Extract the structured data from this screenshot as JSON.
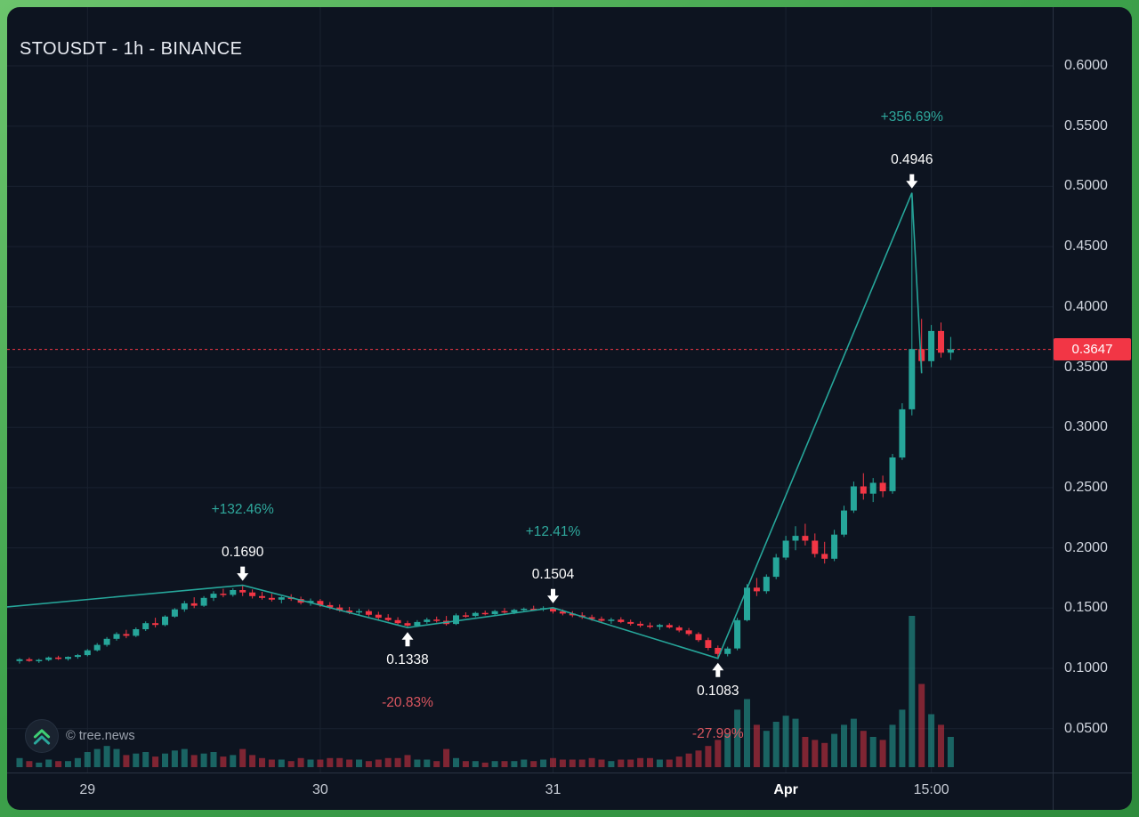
{
  "header": {
    "title": "STOUSDT - 1h - BINANCE"
  },
  "watermark": {
    "text": "© tree.news",
    "logo": "tree-news-double-chevron-up-icon"
  },
  "frame": {
    "border_gradient": [
      "#6cc46d",
      "#2e8c3c"
    ],
    "background": "#0d1420"
  },
  "chart_data": {
    "type": "candlestick",
    "title": "STOUSDT - 1h - BINANCE",
    "symbol": "STOUSDT",
    "interval": "1h",
    "exchange": "BINANCE",
    "ylim": [
      0.01,
      0.65
    ],
    "grid": "on",
    "last_price": 0.3647,
    "last_price_label": "0.3647",
    "colors": {
      "up": "#26a69a",
      "down": "#f23645",
      "vol_up": "rgba(38,166,154,0.55)",
      "vol_down": "rgba(242,54,69,0.5)",
      "grid": "#1a2230",
      "separator": "#2a3342",
      "pct_up": "#2fa99d",
      "pct_down": "#d9565f",
      "arrow": "#ffffff",
      "badge_bg": "#f23645"
    },
    "price_ticks": [
      {
        "label": "0.6000",
        "value": 0.6
      },
      {
        "label": "0.5500",
        "value": 0.55
      },
      {
        "label": "0.5000",
        "value": 0.5
      },
      {
        "label": "0.4500",
        "value": 0.45
      },
      {
        "label": "0.4000",
        "value": 0.4
      },
      {
        "label": "0.3500",
        "value": 0.35
      },
      {
        "label": "0.3000",
        "value": 0.3
      },
      {
        "label": "0.2500",
        "value": 0.25
      },
      {
        "label": "0.2000",
        "value": 0.2
      },
      {
        "label": "0.1500",
        "value": 0.15
      },
      {
        "label": "0.1000",
        "value": 0.1
      },
      {
        "label": "0.0500",
        "value": 0.05
      }
    ],
    "time_ticks": [
      {
        "label": "29",
        "index": 7,
        "bold": false
      },
      {
        "label": "30",
        "index": 31,
        "bold": false
      },
      {
        "label": "31",
        "index": 55,
        "bold": false
      },
      {
        "label": "Apr",
        "index": 79,
        "bold": true
      },
      {
        "label": "15:00",
        "index": 94,
        "bold": false
      }
    ],
    "zigzag": {
      "color": "#26a69a",
      "points": [
        {
          "i": -2,
          "price": 0.1505
        },
        {
          "i": 23,
          "price": 0.169
        },
        {
          "i": 40,
          "price": 0.1338
        },
        {
          "i": 55,
          "price": 0.1504
        },
        {
          "i": 72,
          "price": 0.1083
        },
        {
          "i": 92,
          "price": 0.4946
        },
        {
          "i": 93,
          "price": 0.345
        }
      ]
    },
    "swings": [
      {
        "i": 23,
        "price": 0.169,
        "side": "above",
        "trend": "up",
        "price_label": "0.1690",
        "pct_label": "+132.46%"
      },
      {
        "i": 40,
        "price": 0.1338,
        "side": "below",
        "trend": "down",
        "price_label": "0.1338",
        "pct_label": "-20.83%"
      },
      {
        "i": 55,
        "price": 0.1504,
        "side": "above",
        "trend": "up",
        "price_label": "0.1504",
        "pct_label": "+12.41%"
      },
      {
        "i": 72,
        "price": 0.1083,
        "side": "below",
        "trend": "down",
        "price_label": "0.1083",
        "pct_label": "-27.99%"
      },
      {
        "i": 92,
        "price": 0.4946,
        "side": "above",
        "trend": "up",
        "price_label": "0.4946",
        "pct_label": "+356.69%"
      }
    ],
    "candles_format": [
      "open",
      "high",
      "low",
      "close",
      "volume"
    ],
    "candles": [
      [
        0.106,
        0.1085,
        0.104,
        0.1075,
        6
      ],
      [
        0.1075,
        0.109,
        0.1055,
        0.1062,
        4
      ],
      [
        0.1062,
        0.108,
        0.1045,
        0.107,
        3
      ],
      [
        0.107,
        0.1098,
        0.106,
        0.109,
        5
      ],
      [
        0.109,
        0.1105,
        0.107,
        0.1078,
        4
      ],
      [
        0.1078,
        0.11,
        0.1065,
        0.1095,
        4
      ],
      [
        0.1095,
        0.112,
        0.108,
        0.111,
        6
      ],
      [
        0.111,
        0.116,
        0.11,
        0.115,
        10
      ],
      [
        0.115,
        0.121,
        0.114,
        0.1195,
        12
      ],
      [
        0.1195,
        0.126,
        0.118,
        0.1245,
        14
      ],
      [
        0.1245,
        0.13,
        0.123,
        0.1285,
        12
      ],
      [
        0.1285,
        0.132,
        0.125,
        0.127,
        8
      ],
      [
        0.127,
        0.134,
        0.126,
        0.1325,
        9
      ],
      [
        0.1325,
        0.139,
        0.131,
        0.1375,
        10
      ],
      [
        0.1375,
        0.142,
        0.134,
        0.136,
        7
      ],
      [
        0.136,
        0.144,
        0.135,
        0.143,
        9
      ],
      [
        0.143,
        0.15,
        0.142,
        0.149,
        11
      ],
      [
        0.149,
        0.156,
        0.147,
        0.154,
        12
      ],
      [
        0.154,
        0.159,
        0.15,
        0.152,
        8
      ],
      [
        0.152,
        0.16,
        0.151,
        0.1585,
        9
      ],
      [
        0.1585,
        0.164,
        0.156,
        0.162,
        10
      ],
      [
        0.162,
        0.166,
        0.159,
        0.161,
        7
      ],
      [
        0.161,
        0.1665,
        0.1595,
        0.165,
        8
      ],
      [
        0.165,
        0.169,
        0.16,
        0.163,
        12
      ],
      [
        0.163,
        0.1655,
        0.158,
        0.16,
        8
      ],
      [
        0.16,
        0.1635,
        0.157,
        0.1585,
        6
      ],
      [
        0.1585,
        0.162,
        0.1555,
        0.157,
        5
      ],
      [
        0.157,
        0.16,
        0.154,
        0.159,
        5
      ],
      [
        0.159,
        0.1615,
        0.156,
        0.1575,
        4
      ],
      [
        0.1575,
        0.1595,
        0.153,
        0.1545,
        6
      ],
      [
        0.1545,
        0.158,
        0.152,
        0.156,
        5
      ],
      [
        0.156,
        0.1575,
        0.151,
        0.1525,
        5
      ],
      [
        0.1525,
        0.155,
        0.149,
        0.1505,
        6
      ],
      [
        0.1505,
        0.153,
        0.147,
        0.148,
        6
      ],
      [
        0.148,
        0.151,
        0.145,
        0.1465,
        5
      ],
      [
        0.1465,
        0.1495,
        0.144,
        0.1475,
        5
      ],
      [
        0.1475,
        0.149,
        0.143,
        0.1445,
        4
      ],
      [
        0.1445,
        0.147,
        0.1405,
        0.142,
        5
      ],
      [
        0.142,
        0.145,
        0.139,
        0.14,
        6
      ],
      [
        0.14,
        0.1425,
        0.136,
        0.1375,
        6
      ],
      [
        0.1375,
        0.1395,
        0.1338,
        0.1355,
        8
      ],
      [
        0.1355,
        0.14,
        0.1345,
        0.1385,
        5
      ],
      [
        0.1385,
        0.142,
        0.137,
        0.1405,
        5
      ],
      [
        0.1405,
        0.143,
        0.138,
        0.1395,
        4
      ],
      [
        0.1395,
        0.1435,
        0.1355,
        0.1368,
        12
      ],
      [
        0.1368,
        0.1455,
        0.136,
        0.144,
        6
      ],
      [
        0.144,
        0.1465,
        0.142,
        0.1435,
        4
      ],
      [
        0.1435,
        0.147,
        0.1425,
        0.146,
        4
      ],
      [
        0.146,
        0.148,
        0.144,
        0.145,
        3
      ],
      [
        0.145,
        0.1485,
        0.144,
        0.1475,
        4
      ],
      [
        0.1475,
        0.15,
        0.1455,
        0.1465,
        4
      ],
      [
        0.1465,
        0.1495,
        0.145,
        0.1485,
        4
      ],
      [
        0.1485,
        0.1505,
        0.1465,
        0.1495,
        5
      ],
      [
        0.1495,
        0.152,
        0.148,
        0.149,
        4
      ],
      [
        0.149,
        0.1515,
        0.1475,
        0.15,
        5
      ],
      [
        0.15,
        0.1504,
        0.1455,
        0.1472,
        6
      ],
      [
        0.1472,
        0.149,
        0.144,
        0.1455,
        5
      ],
      [
        0.1455,
        0.1475,
        0.1425,
        0.144,
        5
      ],
      [
        0.144,
        0.1465,
        0.141,
        0.1425,
        5
      ],
      [
        0.1425,
        0.1445,
        0.1395,
        0.141,
        6
      ],
      [
        0.141,
        0.143,
        0.138,
        0.1395,
        5
      ],
      [
        0.1395,
        0.142,
        0.137,
        0.1405,
        4
      ],
      [
        0.1405,
        0.1425,
        0.1375,
        0.1385,
        5
      ],
      [
        0.1385,
        0.1405,
        0.1355,
        0.137,
        5
      ],
      [
        0.137,
        0.139,
        0.134,
        0.1355,
        6
      ],
      [
        0.1355,
        0.138,
        0.133,
        0.1345,
        6
      ],
      [
        0.1345,
        0.137,
        0.132,
        0.136,
        5
      ],
      [
        0.136,
        0.1375,
        0.133,
        0.134,
        5
      ],
      [
        0.134,
        0.1355,
        0.13,
        0.1315,
        7
      ],
      [
        0.1315,
        0.1335,
        0.127,
        0.1285,
        9
      ],
      [
        0.1285,
        0.13,
        0.122,
        0.1235,
        11
      ],
      [
        0.1235,
        0.1255,
        0.115,
        0.117,
        14
      ],
      [
        0.117,
        0.119,
        0.1083,
        0.112,
        18
      ],
      [
        0.112,
        0.118,
        0.11,
        0.1165,
        22
      ],
      [
        0.1165,
        0.142,
        0.115,
        0.14,
        38
      ],
      [
        0.14,
        0.17,
        0.139,
        0.167,
        45
      ],
      [
        0.167,
        0.175,
        0.16,
        0.164,
        28
      ],
      [
        0.164,
        0.178,
        0.162,
        0.176,
        24
      ],
      [
        0.176,
        0.195,
        0.174,
        0.192,
        30
      ],
      [
        0.192,
        0.21,
        0.19,
        0.206,
        34
      ],
      [
        0.206,
        0.218,
        0.198,
        0.21,
        32
      ],
      [
        0.21,
        0.22,
        0.202,
        0.206,
        20
      ],
      [
        0.206,
        0.212,
        0.192,
        0.195,
        18
      ],
      [
        0.195,
        0.205,
        0.187,
        0.191,
        16
      ],
      [
        0.191,
        0.215,
        0.189,
        0.211,
        22
      ],
      [
        0.211,
        0.235,
        0.209,
        0.231,
        28
      ],
      [
        0.231,
        0.255,
        0.229,
        0.251,
        32
      ],
      [
        0.251,
        0.262,
        0.24,
        0.245,
        24
      ],
      [
        0.245,
        0.258,
        0.238,
        0.254,
        20
      ],
      [
        0.254,
        0.26,
        0.242,
        0.247,
        18
      ],
      [
        0.247,
        0.278,
        0.245,
        0.275,
        28
      ],
      [
        0.275,
        0.32,
        0.273,
        0.315,
        38
      ],
      [
        0.315,
        0.4946,
        0.31,
        0.365,
        100
      ],
      [
        0.365,
        0.39,
        0.345,
        0.355,
        55
      ],
      [
        0.355,
        0.385,
        0.35,
        0.38,
        35
      ],
      [
        0.38,
        0.387,
        0.358,
        0.362,
        28
      ],
      [
        0.362,
        0.375,
        0.356,
        0.3647,
        20
      ]
    ]
  }
}
